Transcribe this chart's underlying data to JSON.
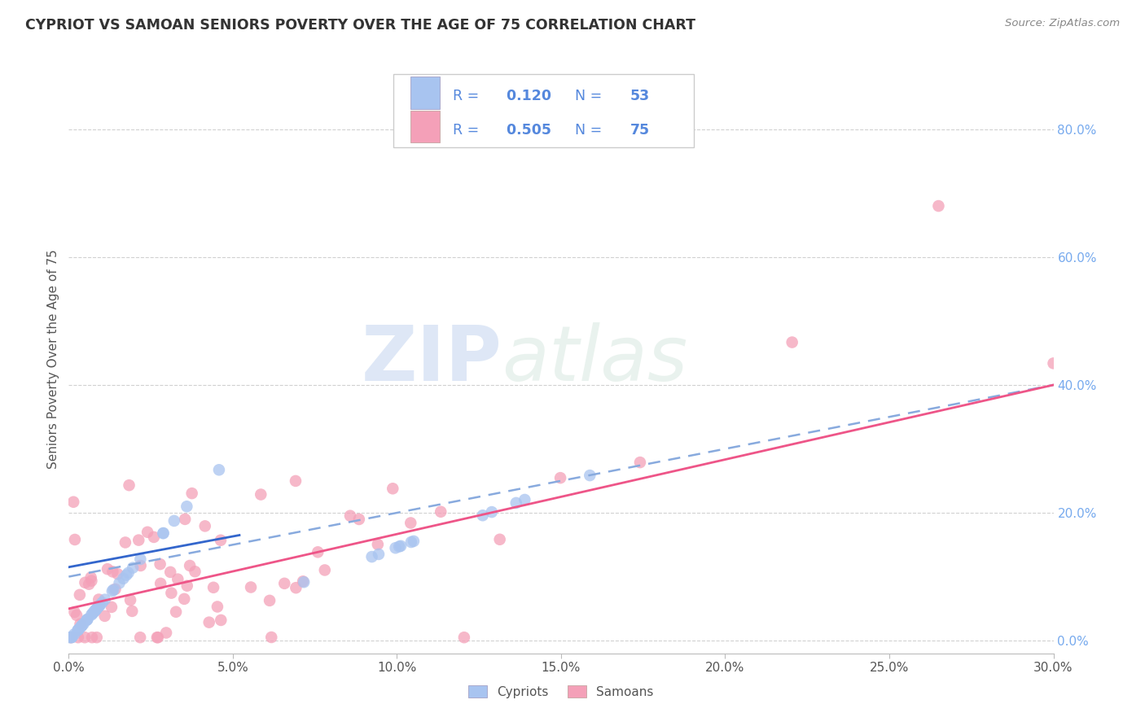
{
  "title": "CYPRIOT VS SAMOAN SENIORS POVERTY OVER THE AGE OF 75 CORRELATION CHART",
  "source": "Source: ZipAtlas.com",
  "ylabel": "Seniors Poverty Over the Age of 75",
  "xlim": [
    0.0,
    0.3
  ],
  "ylim": [
    -0.02,
    0.9
  ],
  "xtick_vals": [
    0.0,
    0.05,
    0.1,
    0.15,
    0.2,
    0.25,
    0.3
  ],
  "ytick_right_vals": [
    0.0,
    0.2,
    0.4,
    0.6,
    0.8
  ],
  "cypriot_R": 0.12,
  "cypriot_N": 53,
  "samoan_R": 0.505,
  "samoan_N": 75,
  "cypriot_color": "#A8C4F0",
  "samoan_color": "#F4A0B8",
  "cypriot_line_color": "#3366CC",
  "samoan_line_color": "#EE5588",
  "cypriot_dash_color": "#88AADE",
  "background_color": "#FFFFFF",
  "grid_color": "#CCCCCC",
  "watermark_zip": "ZIP",
  "watermark_atlas": "atlas",
  "legend_text_color": "#5588DD",
  "title_color": "#333333",
  "source_color": "#888888",
  "right_axis_color": "#77AAEE"
}
